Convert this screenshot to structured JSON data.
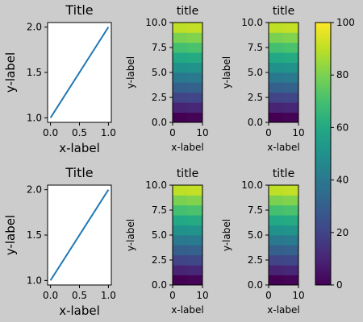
{
  "chart_data": [
    {
      "id": "line_top",
      "type": "line",
      "title": "Title",
      "xlabel": "x-label",
      "ylabel": "y-label",
      "xlim": [
        -0.05,
        1.05
      ],
      "ylim": [
        0.95,
        2.05
      ],
      "xticks": [
        0.0,
        0.5,
        1.0
      ],
      "xtick_labels": [
        "0.0",
        "0.5",
        "1.0"
      ],
      "yticks": [
        1.0,
        1.5,
        2.0
      ],
      "ytick_labels": [
        "1.0",
        "1.5",
        "2.0"
      ],
      "grid": false,
      "series": [
        {
          "x": [
            0,
            1
          ],
          "y": [
            1,
            2
          ],
          "color": "#1f77b4"
        }
      ]
    },
    {
      "id": "heat_top_1",
      "type": "heatmap",
      "title": "title",
      "xlabel": "x-label",
      "ylabel": "y-label",
      "colormap": "viridis",
      "extent": [
        0,
        10,
        0,
        10
      ],
      "xticks": [
        0,
        10
      ],
      "xtick_labels": [
        "0",
        "10"
      ],
      "yticks": [
        0.0,
        2.5,
        5.0,
        7.5,
        10.0
      ],
      "ytick_labels": [
        "0.0",
        "2.5",
        "5.0",
        "7.5",
        "10.0"
      ],
      "rows_bottom_to_top": [
        [
          0,
          1
        ],
        [
          10,
          11
        ],
        [
          20,
          21
        ],
        [
          30,
          31
        ],
        [
          40,
          41
        ],
        [
          50,
          51
        ],
        [
          60,
          61
        ],
        [
          70,
          71
        ],
        [
          80,
          81
        ],
        [
          90,
          91
        ]
      ]
    },
    {
      "id": "heat_top_2",
      "type": "heatmap",
      "title": "title",
      "xlabel": "x-label",
      "ylabel": "y-label",
      "colormap": "viridis",
      "extent": [
        0,
        10,
        0,
        10
      ],
      "xticks": [
        0,
        10
      ],
      "xtick_labels": [
        "0",
        "10"
      ],
      "yticks": [
        0.0,
        2.5,
        5.0,
        7.5,
        10.0
      ],
      "ytick_labels": [
        "0.0",
        "2.5",
        "5.0",
        "7.5",
        "10.0"
      ],
      "rows_bottom_to_top": [
        [
          0,
          1
        ],
        [
          10,
          11
        ],
        [
          20,
          21
        ],
        [
          30,
          31
        ],
        [
          40,
          41
        ],
        [
          50,
          51
        ],
        [
          60,
          61
        ],
        [
          70,
          71
        ],
        [
          80,
          81
        ],
        [
          90,
          91
        ]
      ]
    },
    {
      "id": "line_bottom",
      "type": "line",
      "title": "Title",
      "xlabel": "x-label",
      "ylabel": "y-label",
      "xlim": [
        -0.05,
        1.05
      ],
      "ylim": [
        0.95,
        2.05
      ],
      "xticks": [
        0.0,
        0.5,
        1.0
      ],
      "xtick_labels": [
        "0.0",
        "0.5",
        "1.0"
      ],
      "yticks": [
        1.0,
        1.5,
        2.0
      ],
      "ytick_labels": [
        "1.0",
        "1.5",
        "2.0"
      ],
      "grid": false,
      "series": [
        {
          "x": [
            0,
            1
          ],
          "y": [
            1,
            2
          ],
          "color": "#1f77b4"
        }
      ]
    },
    {
      "id": "heat_bottom_1",
      "type": "heatmap",
      "title": "title",
      "xlabel": "x-label",
      "ylabel": "y-label",
      "colormap": "viridis",
      "extent": [
        0,
        10,
        0,
        10
      ],
      "xticks": [
        0,
        10
      ],
      "xtick_labels": [
        "0",
        "10"
      ],
      "yticks": [
        0.0,
        2.5,
        5.0,
        7.5,
        10.0
      ],
      "ytick_labels": [
        "0.0",
        "2.5",
        "5.0",
        "7.5",
        "10.0"
      ],
      "rows_bottom_to_top": [
        [
          0,
          1
        ],
        [
          10,
          11
        ],
        [
          20,
          21
        ],
        [
          30,
          31
        ],
        [
          40,
          41
        ],
        [
          50,
          51
        ],
        [
          60,
          61
        ],
        [
          70,
          71
        ],
        [
          80,
          81
        ],
        [
          90,
          91
        ]
      ]
    },
    {
      "id": "heat_bottom_2",
      "type": "heatmap",
      "title": "title",
      "xlabel": "x-label",
      "ylabel": "y-label",
      "colormap": "viridis",
      "extent": [
        0,
        10,
        0,
        10
      ],
      "xticks": [
        0,
        10
      ],
      "xtick_labels": [
        "0",
        "10"
      ],
      "yticks": [
        0.0,
        2.5,
        5.0,
        7.5,
        10.0
      ],
      "ytick_labels": [
        "0.0",
        "2.5",
        "5.0",
        "7.5",
        "10.0"
      ],
      "rows_bottom_to_top": [
        [
          0,
          1
        ],
        [
          10,
          11
        ],
        [
          20,
          21
        ],
        [
          30,
          31
        ],
        [
          40,
          41
        ],
        [
          50,
          51
        ],
        [
          60,
          61
        ],
        [
          70,
          71
        ],
        [
          80,
          81
        ],
        [
          90,
          91
        ]
      ]
    },
    {
      "id": "colorbar",
      "type": "colorbar",
      "colormap": "viridis",
      "range": [
        0,
        100
      ],
      "ticks": [
        0,
        20,
        40,
        60,
        80,
        100
      ],
      "tick_labels": [
        "0",
        "20",
        "40",
        "60",
        "80",
        "100"
      ]
    }
  ],
  "colors": {
    "figure_background": "#cccccc",
    "axes_background": "#ffffff",
    "line": "#1f77b4"
  }
}
